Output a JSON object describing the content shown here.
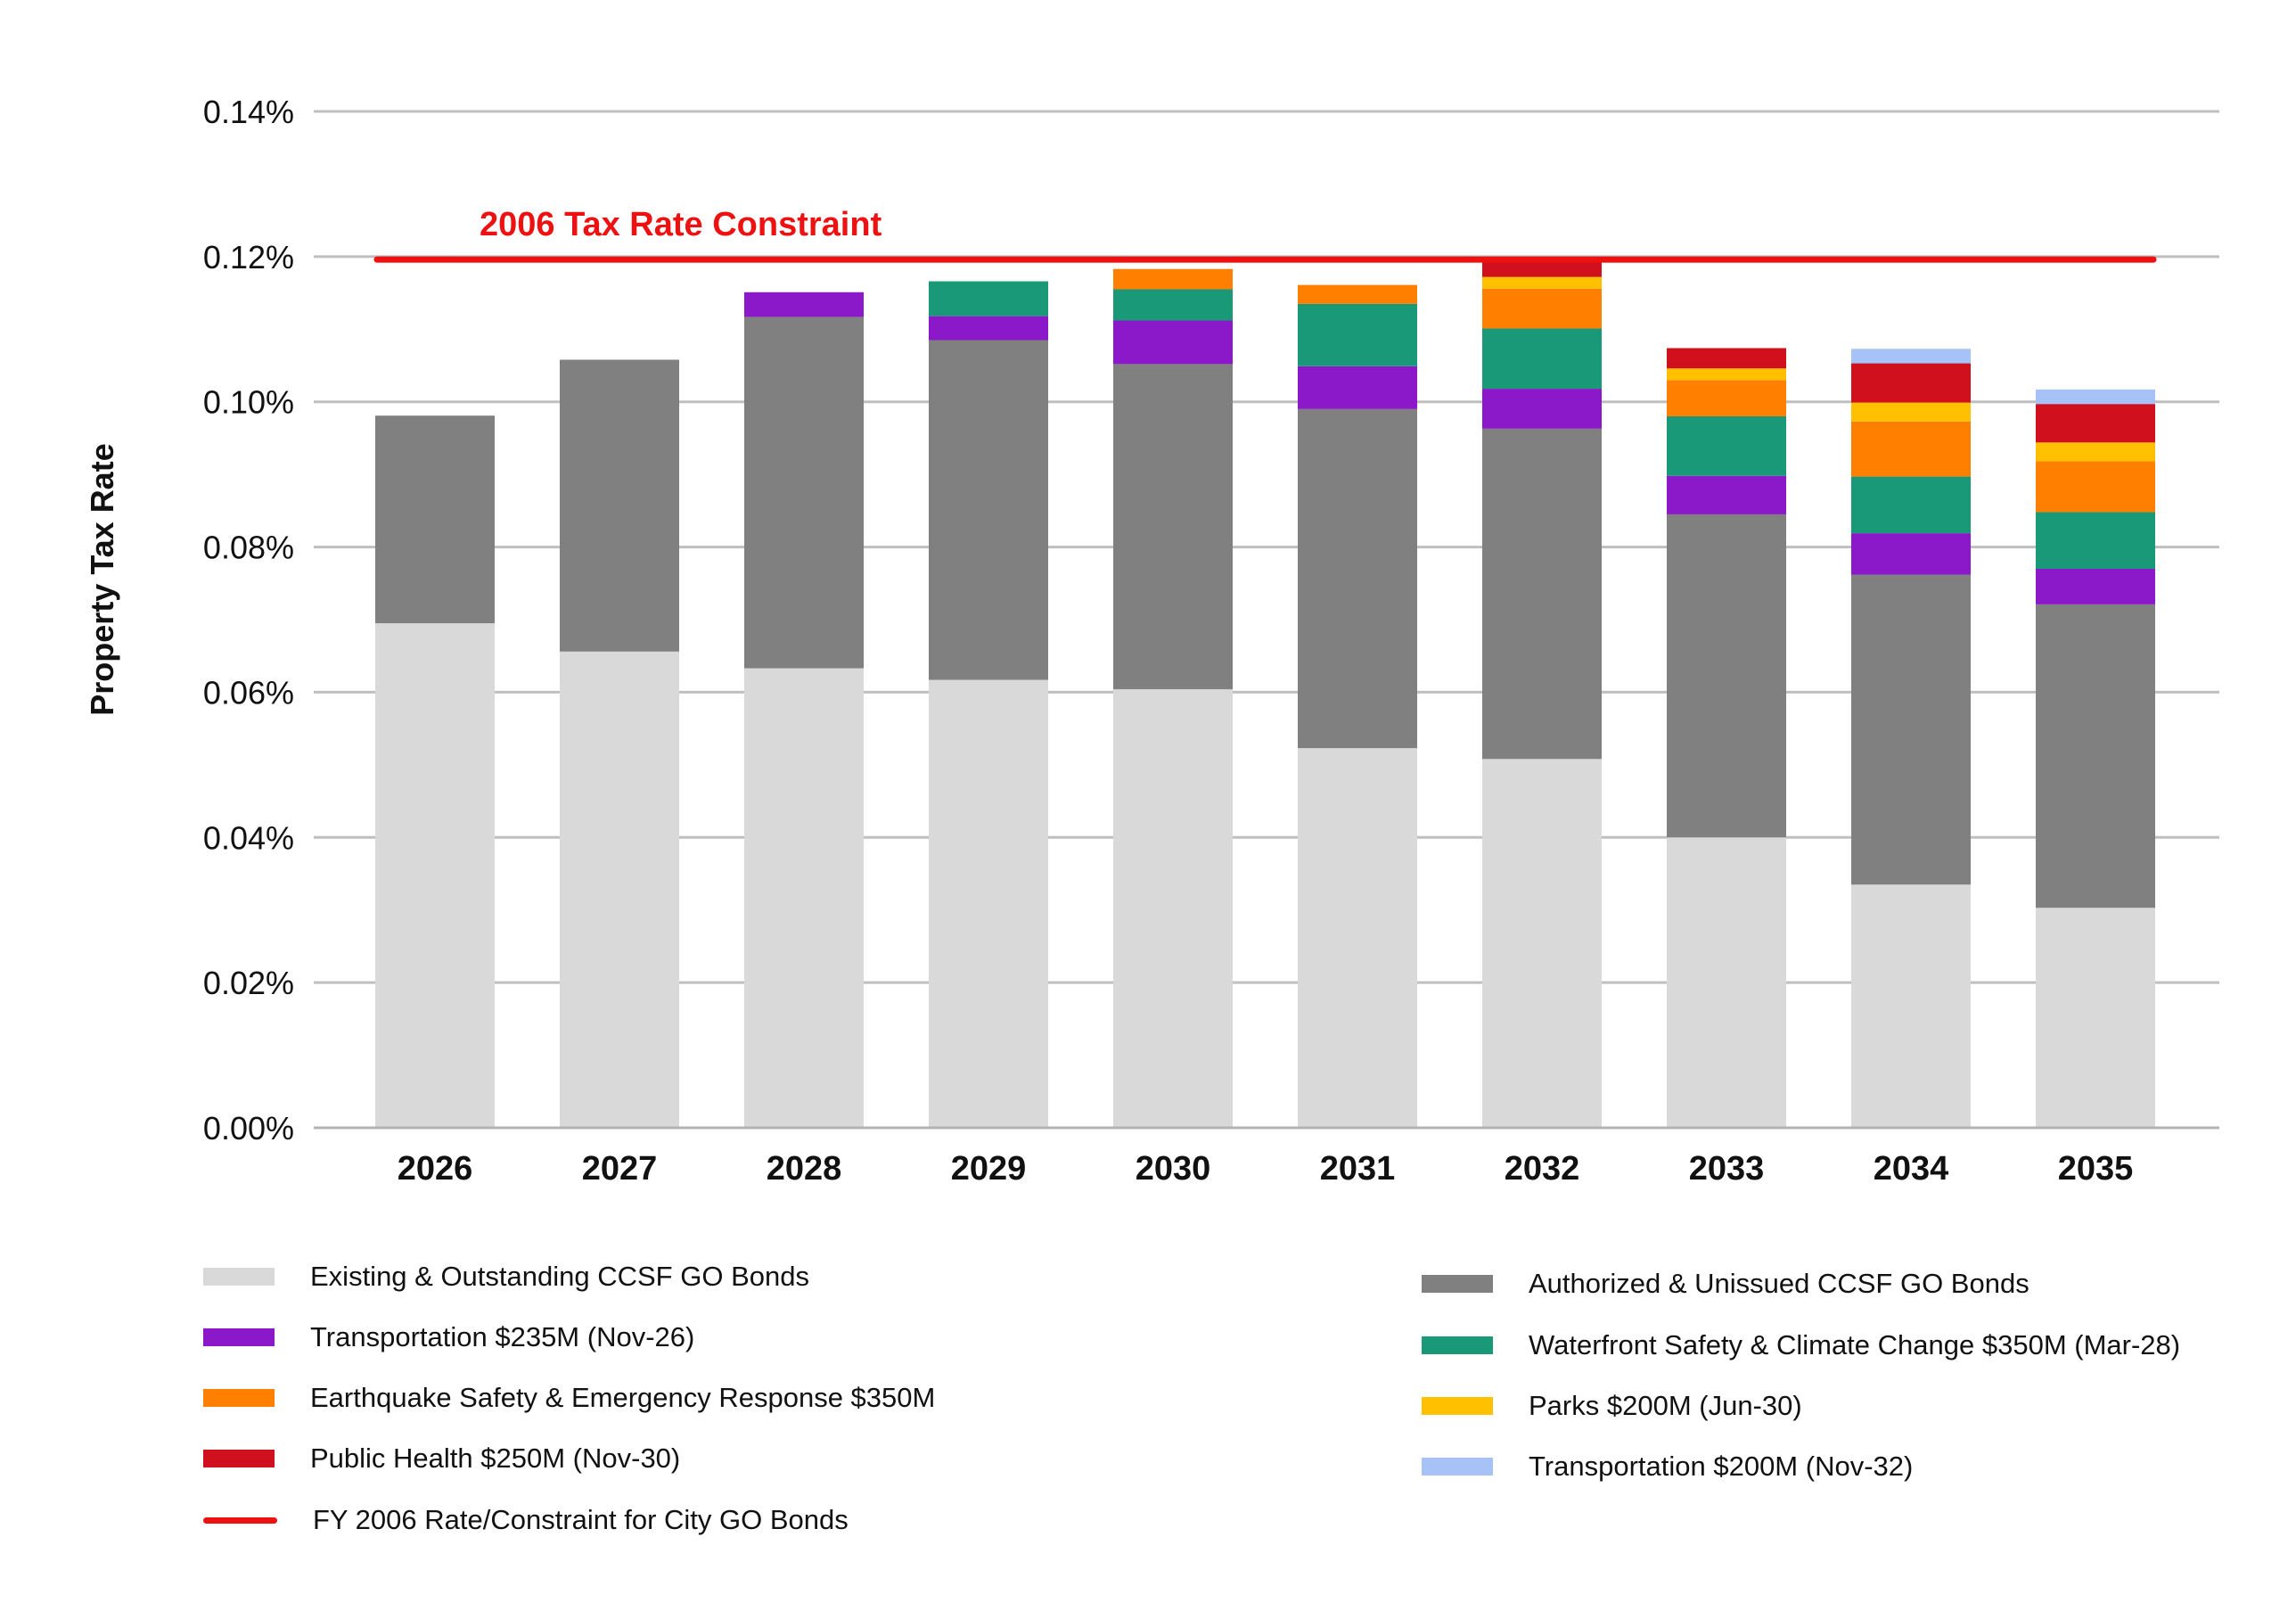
{
  "chart_data": {
    "type": "bar",
    "stacked": true,
    "ylabel": "Property Tax Rate",
    "ylim": [
      0,
      0.14
    ],
    "yticks": [
      "0.00%",
      "0.02%",
      "0.04%",
      "0.06%",
      "0.08%",
      "0.10%",
      "0.12%",
      "0.14%"
    ],
    "ytick_values": [
      0,
      0.02,
      0.04,
      0.06,
      0.08,
      0.1,
      0.12,
      0.14
    ],
    "grid": true,
    "categories": [
      "2026",
      "2027",
      "2028",
      "2029",
      "2030",
      "2031",
      "2032",
      "2033",
      "2034",
      "2035"
    ],
    "series": [
      {
        "name": "Existing & Outstanding CCSF GO Bonds",
        "color": "#d9d9d9",
        "values": [
          0.0695,
          0.0656,
          0.0633,
          0.0617,
          0.0604,
          0.0523,
          0.0508,
          0.04,
          0.0335,
          0.0303
        ]
      },
      {
        "name": "Authorized & Unissued CCSF GO Bonds",
        "color": "#808080",
        "values": [
          0.0286,
          0.0402,
          0.0484,
          0.0468,
          0.0448,
          0.0467,
          0.0455,
          0.0445,
          0.0427,
          0.0418
        ]
      },
      {
        "name": "Transportation $235M (Nov-26)",
        "color": "#8b18c9",
        "values": [
          0,
          0,
          0.0034,
          0.0033,
          0.006,
          0.0059,
          0.0055,
          0.0053,
          0.0057,
          0.0049
        ]
      },
      {
        "name": "Waterfront Safety & Climate Change $350M (Mar-28)",
        "color": "#1a9979",
        "values": [
          0,
          0,
          0,
          0.0048,
          0.0043,
          0.0086,
          0.0083,
          0.0082,
          0.0078,
          0.0078
        ]
      },
      {
        "name": "Earthquake Safety & Emergency Response $350M",
        "color": "#ff8000",
        "values": [
          0,
          0,
          0,
          0,
          0.0028,
          0.0026,
          0.0055,
          0.005,
          0.0076,
          0.007
        ]
      },
      {
        "name": "Parks $200M (Jun-30)",
        "color": "#ffc000",
        "values": [
          0,
          0,
          0,
          0,
          0,
          0,
          0.0016,
          0.0016,
          0.0026,
          0.0026
        ]
      },
      {
        "name": "Public Health $250M (Nov-30)",
        "color": "#d0101c",
        "values": [
          0,
          0,
          0,
          0,
          0,
          0,
          0.0023,
          0.0028,
          0.0054,
          0.0053
        ]
      },
      {
        "name": "Transportation $200M (Nov-32)",
        "color": "#a6c2f7",
        "values": [
          0,
          0,
          0,
          0,
          0,
          0,
          0,
          0,
          0.002,
          0.002
        ]
      }
    ],
    "constraint": {
      "label": "2006 Tax Rate Constraint",
      "value": 0.1196,
      "color": "#ee1111",
      "from_category": "2026",
      "to_category": "2035"
    }
  },
  "legend": {
    "left": [
      {
        "label": "Existing & Outstanding CCSF GO Bonds",
        "color": "#d9d9d9",
        "kind": "box"
      },
      {
        "label": "Transportation $235M (Nov-26)",
        "color": "#8b18c9",
        "kind": "box"
      },
      {
        "label": "Earthquake Safety & Emergency Response $350M",
        "color": "#ff8000",
        "kind": "box"
      },
      {
        "label": "Public Health $250M (Nov-30)",
        "color": "#d0101c",
        "kind": "box"
      },
      {
        "label": "FY 2006 Rate/Constraint for City GO Bonds",
        "color": "#ee1111",
        "kind": "line"
      }
    ],
    "right": [
      {
        "label": "Authorized & Unissued CCSF GO Bonds",
        "color": "#808080",
        "kind": "box"
      },
      {
        "label": "Waterfront Safety & Climate Change $350M (Mar-28)",
        "color": "#1a9979",
        "kind": "box"
      },
      {
        "label": "Parks $200M (Jun-30)",
        "color": "#ffc000",
        "kind": "box"
      },
      {
        "label": "Transportation $200M (Nov-32)",
        "color": "#a6c2f7",
        "kind": "box"
      }
    ]
  }
}
